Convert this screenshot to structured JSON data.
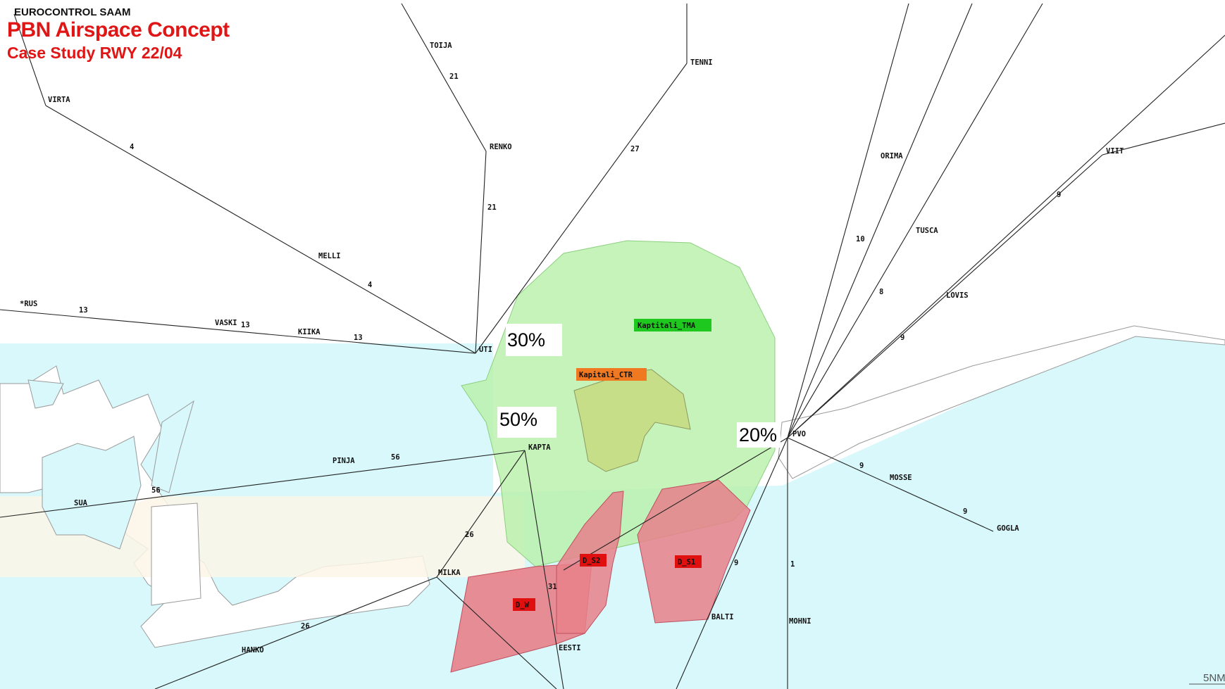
{
  "header": {
    "org": "EUROCONTROL SAAM",
    "title": "PBN Airspace Concept",
    "subtitle": "Case Study RWY 22/04"
  },
  "colors": {
    "sea": "#d8f8fb",
    "land": "#ffffff",
    "beige_band": "#fbf6e6",
    "tma_fill": "#b8f0a8",
    "ctr_fill": "#c6dc84",
    "danger_fill": "#e8808a",
    "title_red": "#e01515",
    "route_line": "#222222"
  },
  "airspace_labels": {
    "tma": "Kaptitali_TMA",
    "ctr": "Kapitali_CTR",
    "d_s2": "D_S2",
    "d_s1": "D_S1",
    "d_w": "D_W"
  },
  "percentages": {
    "p30": "30%",
    "p50": "50%",
    "p20": "20%"
  },
  "waypoints": {
    "toija": "TOIJA",
    "tenni": "TENNI",
    "virta": "VIRTA",
    "renko": "RENKO",
    "orima": "ORIMA",
    "viit": "VIIT",
    "tusca": "TUSCA",
    "melli": "MELLI",
    "lovis": "LOVIS",
    "rus": "*RUS",
    "vaski": "VASKI",
    "kiika": "KIIKA",
    "uti": "UTI",
    "pvo": "PVO",
    "kapta": "KAPTA",
    "pinja": "PINJA",
    "mosse": "MOSSE",
    "sua": "SUA",
    "gogla": "GOGLA",
    "milka": "MILKA",
    "balti": "BALTI",
    "mohni": "MOHNI",
    "eesti": "EESTI",
    "hanko": "HANKO"
  },
  "segment_labels": {
    "s21a": "21",
    "s4a": "4",
    "s27": "27",
    "s21b": "21",
    "s9a": "9",
    "s10": "10",
    "s4b": "4",
    "s8": "8",
    "s13a": "13",
    "s13b": "13",
    "s9b": "9",
    "s13c": "13",
    "s56a": "56",
    "s9c": "9",
    "s56b": "56",
    "s9d": "9",
    "s26a": "26",
    "s9e": "9",
    "s1": "1",
    "s31": "31",
    "s26b": "26"
  },
  "scale_label": "5NM"
}
